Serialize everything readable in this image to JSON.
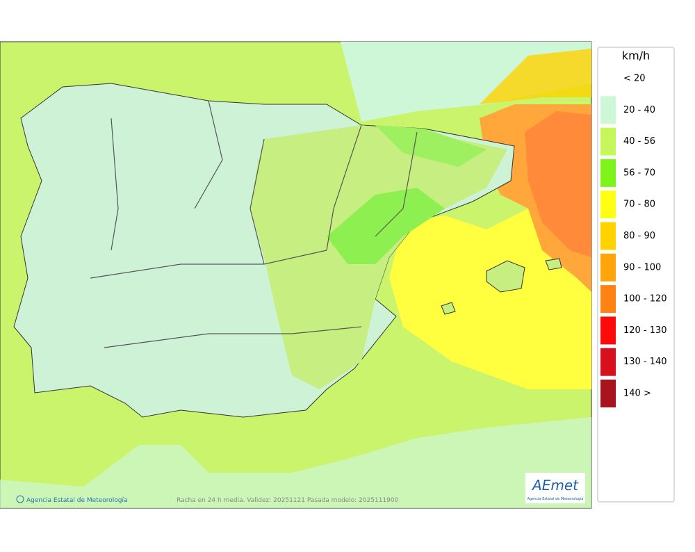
{
  "legend": {
    "unit": "km/h",
    "items": [
      {
        "label": "< 20"
      },
      {
        "label": "20 - 40",
        "color": "#cdf7d6"
      },
      {
        "label": "40 - 56",
        "color": "#c6f75a"
      },
      {
        "label": "56 - 70",
        "color": "#7df51a"
      },
      {
        "label": "70 - 80",
        "color": "#ffff14"
      },
      {
        "label": "80 - 90",
        "color": "#ffd200"
      },
      {
        "label": "90 - 100",
        "color": "#ffa50a"
      },
      {
        "label": "100 - 120",
        "color": "#ff8214"
      },
      {
        "label": "120 - 130",
        "color": "#ff0a0a"
      },
      {
        "label": "130 - 140",
        "color": "#d8101e"
      },
      {
        "label": "140 >",
        "color": "#a8141e"
      }
    ]
  },
  "footer": {
    "credit": "Agencia Estatal de Meteorología",
    "caption": "Racha en 24 h media. Validez: 20251121 Pasada modelo: 2025111900"
  },
  "logo": {
    "name": "AEmet",
    "subtitle": "Agencia Estatal de Meteorología"
  }
}
